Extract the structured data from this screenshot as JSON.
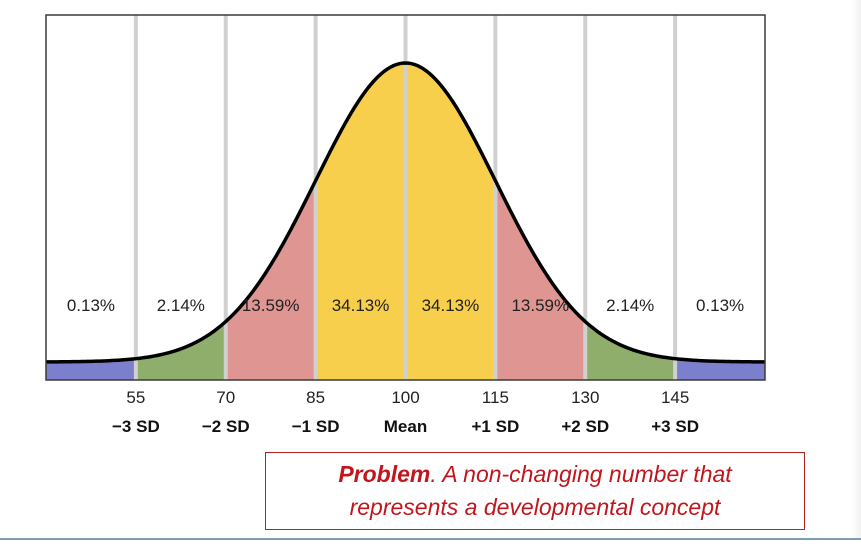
{
  "chart_data": {
    "type": "area",
    "title": "",
    "xlabel": "",
    "ylabel": "",
    "distribution": "normal",
    "mean": 100,
    "sd": 15,
    "xlim": [
      40,
      160
    ],
    "grid": true,
    "ticks": [
      {
        "value": 55,
        "label": "55",
        "sd_label": "−3 SD"
      },
      {
        "value": 70,
        "label": "70",
        "sd_label": "−2 SD"
      },
      {
        "value": 85,
        "label": "85",
        "sd_label": "−1 SD"
      },
      {
        "value": 100,
        "label": "100",
        "sd_label": "Mean"
      },
      {
        "value": 115,
        "label": "115",
        "sd_label": "+1 SD"
      },
      {
        "value": 130,
        "label": "130",
        "sd_label": "+2 SD"
      },
      {
        "value": 145,
        "label": "145",
        "sd_label": "+3 SD"
      }
    ],
    "bands": [
      {
        "from": 40,
        "to": 55,
        "percent": "0.13%",
        "color": "#7b7fcc"
      },
      {
        "from": 55,
        "to": 70,
        "percent": "2.14%",
        "color": "#8fad6b"
      },
      {
        "from": 70,
        "to": 85,
        "percent": "13.59%",
        "color": "#df9592"
      },
      {
        "from": 85,
        "to": 100,
        "percent": "34.13%",
        "color": "#f8cf4c"
      },
      {
        "from": 100,
        "to": 115,
        "percent": "34.13%",
        "color": "#f8cf4c"
      },
      {
        "from": 115,
        "to": 130,
        "percent": "13.59%",
        "color": "#df9592"
      },
      {
        "from": 130,
        "to": 145,
        "percent": "2.14%",
        "color": "#8fad6b"
      },
      {
        "from": 145,
        "to": 160,
        "percent": "0.13%",
        "color": "#7b7fcc"
      }
    ]
  },
  "problem": {
    "bold_word": "Problem",
    "rest_line1": ". A non-changing number that",
    "line2": "represents a developmental concept"
  },
  "colors": {
    "gridline": "#d0d0d0",
    "curve": "#000000",
    "border": "#3a3a3a",
    "problem_text": "#c0161c"
  }
}
